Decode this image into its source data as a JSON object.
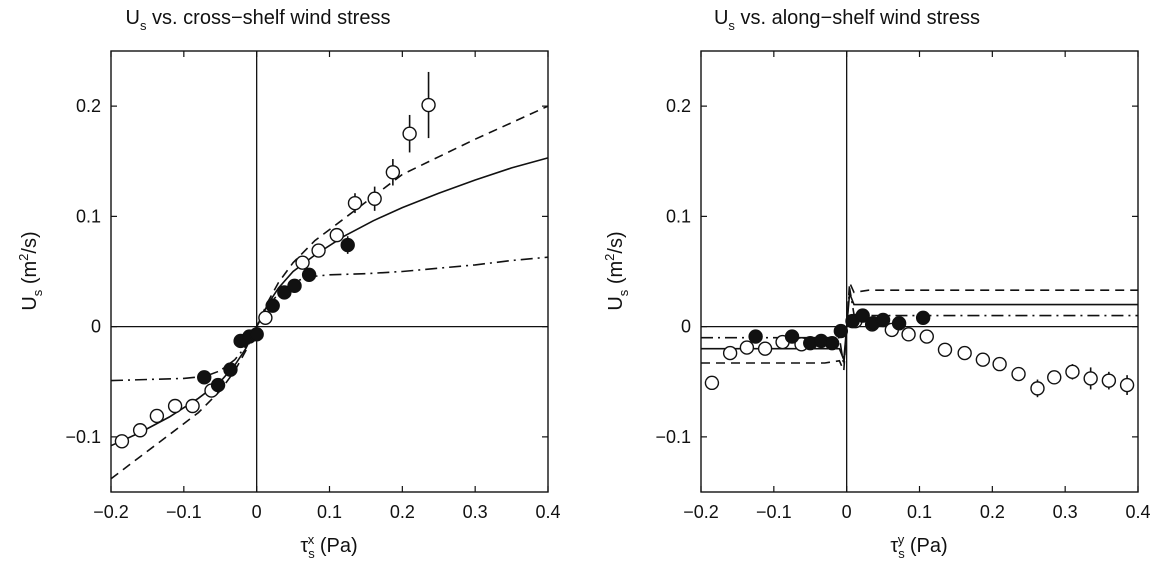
{
  "figure": {
    "panels": [
      {
        "title": {
          "main": "U",
          "sub": "s",
          "rest": " vs. cross−shelf wind stress"
        },
        "xlabel": {
          "sym": "τ",
          "sub": "s",
          "sup": "x",
          "unit": " (Pa)"
        },
        "ylabel": {
          "main": "U",
          "sub": "s",
          "mid": " (m",
          "sup": "2",
          "end": "/s)"
        }
      },
      {
        "title": {
          "main": "U",
          "sub": "s",
          "rest": " vs. along−shelf wind stress"
        },
        "xlabel": {
          "sym": "τ",
          "sub": "s",
          "sup": "y",
          "unit": " (Pa)"
        },
        "ylabel": {
          "main": "U",
          "sub": "s",
          "mid": " (m",
          "sup": "2",
          "end": "/s)"
        }
      }
    ]
  },
  "chart_data": [
    {
      "type": "scatter",
      "title": "Us vs. cross−shelf wind stress",
      "xlabel": "τs^x (Pa)",
      "ylabel": "Us (m2/s)",
      "xlim": [
        -0.2,
        0.4
      ],
      "ylim": [
        -0.15,
        0.25
      ],
      "xticks": [
        -0.2,
        -0.1,
        0,
        0.1,
        0.2,
        0.3,
        0.4
      ],
      "xtick_labels": [
        "−0.2",
        "−0.1",
        "0",
        "0.1",
        "0.2",
        "0.3",
        "0.4"
      ],
      "yticks": [
        -0.1,
        0,
        0.1,
        0.2
      ],
      "ytick_labels": [
        "−0.1",
        "0",
        "0.1",
        "0.2"
      ],
      "grid": false,
      "zero_lines": true,
      "series": [
        {
          "style": "open-circle",
          "points": [
            {
              "x": -0.185,
              "y": -0.104
            },
            {
              "x": -0.16,
              "y": -0.094
            },
            {
              "x": -0.137,
              "y": -0.081
            },
            {
              "x": -0.112,
              "y": -0.072
            },
            {
              "x": -0.088,
              "y": -0.072
            },
            {
              "x": -0.062,
              "y": -0.058
            },
            {
              "x": 0.012,
              "y": 0.008
            },
            {
              "x": 0.063,
              "y": 0.058,
              "err": 0.005
            },
            {
              "x": 0.085,
              "y": 0.069
            },
            {
              "x": 0.11,
              "y": 0.083,
              "err": 0.006
            },
            {
              "x": 0.135,
              "y": 0.112,
              "err": 0.009
            },
            {
              "x": 0.162,
              "y": 0.116,
              "err": 0.011
            },
            {
              "x": 0.187,
              "y": 0.14,
              "err": 0.012
            },
            {
              "x": 0.21,
              "y": 0.175,
              "err": 0.017
            },
            {
              "x": 0.236,
              "y": 0.201,
              "err": 0.03
            }
          ]
        },
        {
          "style": "filled-circle",
          "points": [
            {
              "x": -0.072,
              "y": -0.046
            },
            {
              "x": -0.053,
              "y": -0.053
            },
            {
              "x": -0.036,
              "y": -0.039
            },
            {
              "x": -0.022,
              "y": -0.013
            },
            {
              "x": -0.01,
              "y": -0.009
            },
            {
              "x": 0,
              "y": -0.007
            },
            {
              "x": 0.022,
              "y": 0.019
            },
            {
              "x": 0.038,
              "y": 0.031
            },
            {
              "x": 0.052,
              "y": 0.037
            },
            {
              "x": 0.072,
              "y": 0.047
            },
            {
              "x": 0.125,
              "y": 0.074,
              "err": 0.008
            }
          ]
        },
        {
          "style": "solid-line",
          "points": [
            [
              -0.2,
              -0.108
            ],
            [
              -0.16,
              -0.096
            ],
            [
              -0.12,
              -0.082
            ],
            [
              -0.08,
              -0.065
            ],
            [
              -0.05,
              -0.05
            ],
            [
              -0.03,
              -0.035
            ],
            [
              -0.015,
              -0.02
            ],
            [
              0,
              0
            ],
            [
              0.015,
              0.02
            ],
            [
              0.03,
              0.035
            ],
            [
              0.05,
              0.05
            ],
            [
              0.08,
              0.065
            ],
            [
              0.12,
              0.082
            ],
            [
              0.16,
              0.096
            ],
            [
              0.2,
              0.108
            ],
            [
              0.25,
              0.121
            ],
            [
              0.3,
              0.133
            ],
            [
              0.35,
              0.144
            ],
            [
              0.4,
              0.153
            ]
          ]
        },
        {
          "style": "dashed-line",
          "points": [
            [
              -0.2,
              -0.138
            ],
            [
              -0.16,
              -0.118
            ],
            [
              -0.12,
              -0.098
            ],
            [
              -0.08,
              -0.078
            ],
            [
              -0.05,
              -0.058
            ],
            [
              -0.03,
              -0.04
            ],
            [
              -0.015,
              -0.022
            ],
            [
              0,
              0
            ],
            [
              0.015,
              0.022
            ],
            [
              0.03,
              0.04
            ],
            [
              0.05,
              0.058
            ],
            [
              0.08,
              0.078
            ],
            [
              0.12,
              0.098
            ],
            [
              0.16,
              0.118
            ],
            [
              0.2,
              0.138
            ],
            [
              0.25,
              0.154
            ],
            [
              0.3,
              0.17
            ],
            [
              0.35,
              0.185
            ],
            [
              0.4,
              0.2
            ]
          ]
        },
        {
          "style": "dashdot-line",
          "points": [
            [
              -0.2,
              -0.049
            ],
            [
              -0.15,
              -0.048
            ],
            [
              -0.1,
              -0.047
            ],
            [
              -0.07,
              -0.045
            ],
            [
              -0.05,
              -0.04
            ],
            [
              -0.03,
              -0.03
            ],
            [
              -0.015,
              -0.018
            ],
            [
              0,
              0
            ],
            [
              0.015,
              0.018
            ],
            [
              0.03,
              0.03
            ],
            [
              0.05,
              0.04
            ],
            [
              0.07,
              0.045
            ],
            [
              0.1,
              0.047
            ],
            [
              0.15,
              0.048
            ],
            [
              0.2,
              0.05
            ],
            [
              0.25,
              0.053
            ],
            [
              0.3,
              0.056
            ],
            [
              0.35,
              0.06
            ],
            [
              0.4,
              0.063
            ]
          ]
        }
      ]
    },
    {
      "type": "scatter",
      "title": "Us vs. along−shelf wind stress",
      "xlabel": "τs^y (Pa)",
      "ylabel": "Us (m2/s)",
      "xlim": [
        -0.2,
        0.4
      ],
      "ylim": [
        -0.15,
        0.25
      ],
      "xticks": [
        -0.2,
        -0.1,
        0,
        0.1,
        0.2,
        0.3,
        0.4
      ],
      "xtick_labels": [
        "−0.2",
        "−0.1",
        "0",
        "0.1",
        "0.2",
        "0.3",
        "0.4"
      ],
      "yticks": [
        -0.1,
        0,
        0.1,
        0.2
      ],
      "ytick_labels": [
        "−0.1",
        "0",
        "0.1",
        "0.2"
      ],
      "grid": false,
      "zero_lines": true,
      "series": [
        {
          "style": "open-circle",
          "points": [
            {
              "x": -0.185,
              "y": -0.051,
              "err": 0.006
            },
            {
              "x": -0.16,
              "y": -0.024
            },
            {
              "x": -0.137,
              "y": -0.019
            },
            {
              "x": -0.112,
              "y": -0.02
            },
            {
              "x": -0.088,
              "y": -0.014
            },
            {
              "x": -0.062,
              "y": -0.016
            },
            {
              "x": 0.012,
              "y": 0.005
            },
            {
              "x": 0.035,
              "y": 0.002
            },
            {
              "x": 0.062,
              "y": -0.003
            },
            {
              "x": 0.085,
              "y": -0.007
            },
            {
              "x": 0.11,
              "y": -0.009
            },
            {
              "x": 0.135,
              "y": -0.021
            },
            {
              "x": 0.162,
              "y": -0.024
            },
            {
              "x": 0.187,
              "y": -0.03
            },
            {
              "x": 0.21,
              "y": -0.034
            },
            {
              "x": 0.236,
              "y": -0.043
            },
            {
              "x": 0.262,
              "y": -0.056,
              "err": 0.008
            },
            {
              "x": 0.285,
              "y": -0.046
            },
            {
              "x": 0.31,
              "y": -0.041,
              "err": 0.007
            },
            {
              "x": 0.335,
              "y": -0.047,
              "err": 0.01
            },
            {
              "x": 0.36,
              "y": -0.049,
              "err": 0.008
            },
            {
              "x": 0.385,
              "y": -0.053,
              "err": 0.009
            }
          ]
        },
        {
          "style": "filled-circle",
          "points": [
            {
              "x": -0.125,
              "y": -0.009
            },
            {
              "x": -0.075,
              "y": -0.009
            },
            {
              "x": -0.05,
              "y": -0.015
            },
            {
              "x": -0.035,
              "y": -0.013
            },
            {
              "x": -0.02,
              "y": -0.015
            },
            {
              "x": -0.008,
              "y": -0.004
            },
            {
              "x": 0.008,
              "y": 0.005
            },
            {
              "x": 0.022,
              "y": 0.01
            },
            {
              "x": 0.036,
              "y": 0.003
            },
            {
              "x": 0.05,
              "y": 0.006
            },
            {
              "x": 0.072,
              "y": 0.003
            },
            {
              "x": 0.105,
              "y": 0.008
            }
          ]
        },
        {
          "style": "solid-line",
          "points": [
            [
              -0.2,
              -0.02
            ],
            [
              -0.1,
              -0.02
            ],
            [
              -0.03,
              -0.02
            ],
            [
              -0.01,
              -0.02
            ],
            [
              -0.004,
              -0.03
            ],
            [
              0,
              0
            ],
            [
              0.004,
              0.03
            ],
            [
              0.01,
              0.02
            ],
            [
              0.03,
              0.02
            ],
            [
              0.1,
              0.02
            ],
            [
              0.4,
              0.02
            ]
          ]
        },
        {
          "style": "dashed-line",
          "points": [
            [
              -0.2,
              -0.033
            ],
            [
              -0.1,
              -0.033
            ],
            [
              -0.03,
              -0.033
            ],
            [
              -0.01,
              -0.031
            ],
            [
              -0.004,
              -0.04
            ],
            [
              0,
              0
            ],
            [
              0.004,
              0.04
            ],
            [
              0.01,
              0.031
            ],
            [
              0.03,
              0.033
            ],
            [
              0.1,
              0.033
            ],
            [
              0.4,
              0.033
            ]
          ]
        },
        {
          "style": "dashdot-line",
          "points": [
            [
              -0.2,
              -0.01
            ],
            [
              -0.1,
              -0.01
            ],
            [
              -0.03,
              -0.01
            ],
            [
              -0.01,
              -0.01
            ],
            [
              -0.004,
              -0.035
            ],
            [
              0,
              0
            ],
            [
              0.004,
              0.035
            ],
            [
              0.01,
              0.011
            ],
            [
              0.03,
              0.01
            ],
            [
              0.1,
              0.01
            ],
            [
              0.4,
              0.01
            ]
          ]
        }
      ]
    }
  ]
}
